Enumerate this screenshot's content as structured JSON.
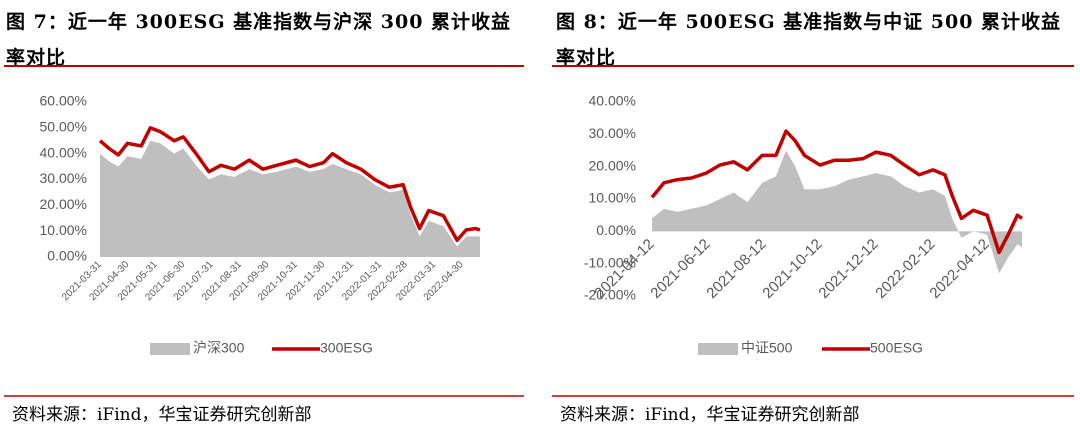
{
  "chart_data": [
    {
      "type": "line",
      "title": "图 7：近一年 300ESG 基准指数与沪深 300 累计收益率对比",
      "note": "资料来源：iFind，华宝证券研究创新部",
      "x": [
        "2021-03-31",
        "2021-04-10",
        "2021-04-20",
        "2021-04-30",
        "2021-05-15",
        "2021-05-25",
        "2021-06-05",
        "2021-06-20",
        "2021-06-30",
        "2021-07-15",
        "2021-07-28",
        "2021-08-10",
        "2021-08-25",
        "2021-09-10",
        "2021-09-25",
        "2021-10-10",
        "2021-10-31",
        "2021-11-15",
        "2021-11-30",
        "2021-12-10",
        "2021-12-25",
        "2022-01-10",
        "2022-01-25",
        "2022-02-10",
        "2022-02-25",
        "2022-03-05",
        "2022-03-15",
        "2022-03-25",
        "2022-04-10",
        "2022-04-25",
        "2022-05-05",
        "2022-05-15",
        "2022-05-20"
      ],
      "xlim": [
        "2021-03-31",
        "2022-05-20"
      ],
      "xticks": [
        "2021-03-31",
        "2021-04-30",
        "2021-05-31",
        "2021-06-30",
        "2021-07-31",
        "2021-08-31",
        "2021-09-30",
        "2021-10-31",
        "2021-11-30",
        "2021-12-31",
        "2022-01-31",
        "2022-02-28",
        "2022-03-31",
        "2022-04-30"
      ],
      "ylim": [
        0,
        60
      ],
      "yticks": [
        {
          "value": 0,
          "label": "0.00%"
        },
        {
          "value": 10,
          "label": "10.00%"
        },
        {
          "value": 20,
          "label": "20.00%"
        },
        {
          "value": 30,
          "label": "30.00%"
        },
        {
          "value": 40,
          "label": "40.00%"
        },
        {
          "value": 50,
          "label": "50.00%"
        },
        {
          "value": 60,
          "label": "60.00%"
        }
      ],
      "legend": "bottom",
      "series": [
        {
          "name": "沪深300",
          "type": "area",
          "color": "#bfbfbf",
          "values": [
            40,
            37,
            35,
            39,
            38,
            45,
            44,
            40,
            42,
            35,
            30,
            32,
            31,
            34,
            32,
            33,
            35,
            33,
            34,
            36,
            34,
            32,
            28,
            25,
            26,
            17,
            8,
            14,
            12,
            4,
            8,
            8,
            8
          ]
        },
        {
          "name": "300ESG",
          "type": "line",
          "color": "#c00000",
          "values": [
            45,
            42,
            39.5,
            44,
            43,
            50,
            48.5,
            45,
            46.5,
            39.5,
            33,
            35.5,
            34,
            37.5,
            34,
            35.5,
            37.5,
            35,
            36.5,
            40,
            36.5,
            34,
            30,
            27,
            28,
            19.5,
            11,
            18,
            16,
            6.5,
            10.5,
            11,
            10.5
          ]
        }
      ]
    },
    {
      "type": "line",
      "title": "图 8：近一年 500ESG 基准指数与中证 500 累计收益率对比",
      "note": "资料来源：iFind，华宝证券研究创新部",
      "x": [
        "2021-04-12",
        "2021-04-25",
        "2021-05-10",
        "2021-05-25",
        "2021-06-10",
        "2021-06-25",
        "2021-07-10",
        "2021-07-25",
        "2021-08-10",
        "2021-08-25",
        "2021-09-05",
        "2021-09-15",
        "2021-09-25",
        "2021-10-12",
        "2021-10-28",
        "2021-11-12",
        "2021-11-28",
        "2021-12-12",
        "2021-12-28",
        "2022-01-12",
        "2022-01-28",
        "2022-02-12",
        "2022-02-25",
        "2022-03-05",
        "2022-03-15",
        "2022-03-28",
        "2022-04-12",
        "2022-04-25",
        "2022-05-05",
        "2022-05-15",
        "2022-05-20"
      ],
      "xlim": [
        "2021-04-12",
        "2022-05-20"
      ],
      "xticks": [
        "2021-04-12",
        "2021-06-12",
        "2021-08-12",
        "2021-10-12",
        "2021-12-12",
        "2022-02-12",
        "2022-04-12"
      ],
      "ylim": [
        -20,
        40
      ],
      "yticks": [
        {
          "value": -20,
          "label": "-20.00%"
        },
        {
          "value": -10,
          "label": "-10.00%"
        },
        {
          "value": 0,
          "label": "0.00%"
        },
        {
          "value": 10,
          "label": "10.00%"
        },
        {
          "value": 20,
          "label": "20.00%"
        },
        {
          "value": 30,
          "label": "30.00%"
        },
        {
          "value": 40,
          "label": "40.00%"
        }
      ],
      "legend": "bottom",
      "series": [
        {
          "name": "中证500",
          "type": "area",
          "color": "#bfbfbf",
          "values": [
            4,
            7,
            6,
            7,
            8,
            10,
            12,
            9,
            15,
            17,
            25,
            20,
            13,
            13,
            14,
            16,
            17,
            18,
            17,
            14,
            12,
            13,
            11,
            4,
            -2,
            0,
            -1,
            -13,
            -8,
            -4,
            -5
          ]
        },
        {
          "name": "500ESG",
          "type": "line",
          "color": "#c00000",
          "values": [
            10.5,
            15,
            16,
            16.5,
            18,
            20.5,
            21.5,
            19,
            23.5,
            23.5,
            31,
            28,
            23.5,
            20.5,
            22,
            22,
            22.5,
            24.5,
            23.5,
            20.5,
            17.5,
            19,
            17.5,
            11,
            4,
            6.5,
            5,
            -6.5,
            -1,
            5,
            4
          ]
        }
      ]
    }
  ]
}
